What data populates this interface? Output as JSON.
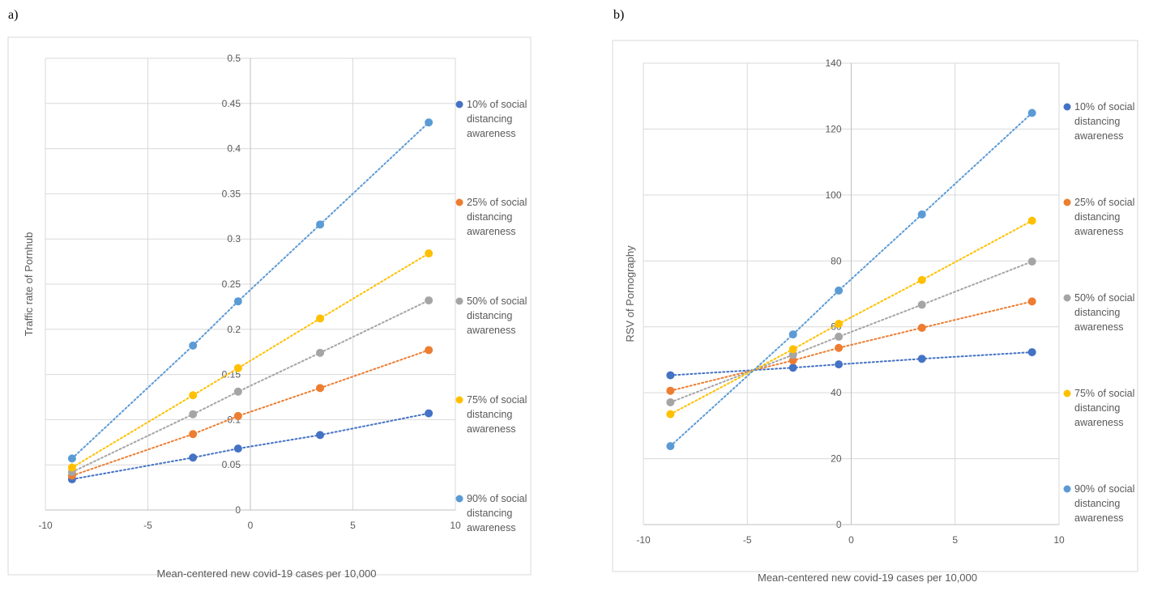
{
  "panels": [
    {
      "label": "a)"
    },
    {
      "label": "b)"
    }
  ],
  "chart_data": [
    {
      "type": "line",
      "title": "",
      "xlabel": "Mean-centered new covid-19 cases per 10,000",
      "ylabel": "Traffic rate of Pornhub",
      "xlim": [
        -10,
        10
      ],
      "ylim": [
        0,
        0.5
      ],
      "xticks": [
        "-10",
        "-5",
        "0",
        "5",
        "10"
      ],
      "yticks": [
        "0",
        "0.05",
        "0.1",
        "0.15",
        "0.2",
        "0.25",
        "0.3",
        "0.35",
        "0.4",
        "0.45",
        "0.5"
      ],
      "grid": true,
      "line_style": "dotted",
      "legend_position": "right",
      "x": [
        -8.7,
        -2.8,
        -0.6,
        3.4,
        8.7
      ],
      "series": [
        {
          "name": "10% of social distancing awareness",
          "color": "#4472C4",
          "values": [
            0.034,
            0.058,
            0.068,
            0.083,
            0.107
          ]
        },
        {
          "name": "25% of social distancing awareness",
          "color": "#ED7D31",
          "values": [
            0.038,
            0.084,
            0.104,
            0.135,
            0.177
          ]
        },
        {
          "name": "50% of social distancing awareness",
          "color": "#A5A5A5",
          "values": [
            0.042,
            0.106,
            0.131,
            0.174,
            0.232
          ]
        },
        {
          "name": "75% of social distancing awareness",
          "color": "#FFC000",
          "values": [
            0.047,
            0.127,
            0.157,
            0.212,
            0.284
          ]
        },
        {
          "name": "90% of social distancing awareness",
          "color": "#5B9BD5",
          "values": [
            0.057,
            0.182,
            0.231,
            0.316,
            0.429
          ]
        }
      ]
    },
    {
      "type": "line",
      "title": "",
      "xlabel": "Mean-centered new covid-19 cases per 10,000",
      "ylabel": "RSV of Pornography",
      "xlim": [
        -10,
        10
      ],
      "ylim": [
        0,
        140
      ],
      "xticks": [
        "-10",
        "-5",
        "0",
        "5",
        "10"
      ],
      "yticks": [
        "0",
        "20",
        "40",
        "60",
        "80",
        "100",
        "120",
        "140"
      ],
      "grid": true,
      "line_style": "dotted",
      "legend_position": "right",
      "x": [
        -8.7,
        -2.8,
        -0.6,
        3.4,
        8.7
      ],
      "series": [
        {
          "name": "10% of social distancing awareness",
          "color": "#4472C4",
          "values": [
            45.3,
            47.6,
            48.6,
            50.3,
            52.3
          ]
        },
        {
          "name": "25% of social distancing awareness",
          "color": "#ED7D31",
          "values": [
            40.6,
            49.8,
            53.6,
            59.7,
            67.7
          ]
        },
        {
          "name": "50% of social distancing awareness",
          "color": "#A5A5A5",
          "values": [
            37.1,
            51.5,
            57.0,
            66.7,
            79.8
          ]
        },
        {
          "name": "75% of social distancing awareness",
          "color": "#FFC000",
          "values": [
            33.5,
            53.2,
            60.9,
            74.2,
            92.2
          ]
        },
        {
          "name": "90% of social distancing awareness",
          "color": "#5B9BD5",
          "values": [
            23.8,
            57.7,
            71.0,
            94.1,
            124.9
          ]
        }
      ]
    }
  ]
}
